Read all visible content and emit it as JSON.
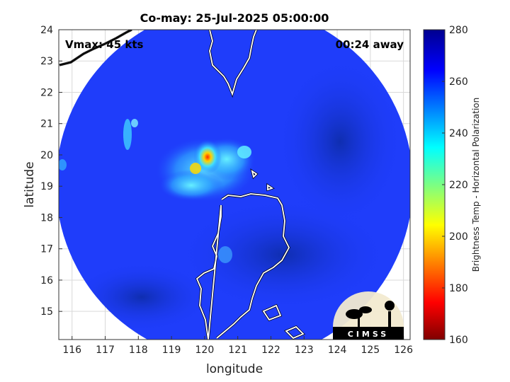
{
  "figure": {
    "title": "Co-may: 25-Jul-2025 05:00:00",
    "vmax_text": "Vmax: 45 kts",
    "time_text": "00:24 away",
    "xlabel": "longitude",
    "ylabel": "latitude",
    "colorbar_label": "Brightness Temp - Horizontal Polarization",
    "logo_text": "CIMSS"
  },
  "axes": {
    "x_ticks": [
      "116",
      "117",
      "118",
      "119",
      "120",
      "121",
      "122",
      "123",
      "124",
      "125",
      "126"
    ],
    "y_ticks": [
      "15",
      "16",
      "17",
      "18",
      "19",
      "20",
      "21",
      "22",
      "23",
      "24"
    ],
    "xlim": [
      115.6,
      126.2
    ],
    "ylim": [
      14.1,
      24.0
    ]
  },
  "colorbar": {
    "ticks": [
      "160",
      "180",
      "200",
      "220",
      "240",
      "260",
      "280"
    ],
    "range": [
      160,
      280
    ],
    "colormap": "jet"
  },
  "colors": {
    "background_blue": "#1e3cff",
    "deep_blue": "#0a1e8c",
    "coast": "#ffffff",
    "shadow": "#000000"
  }
}
